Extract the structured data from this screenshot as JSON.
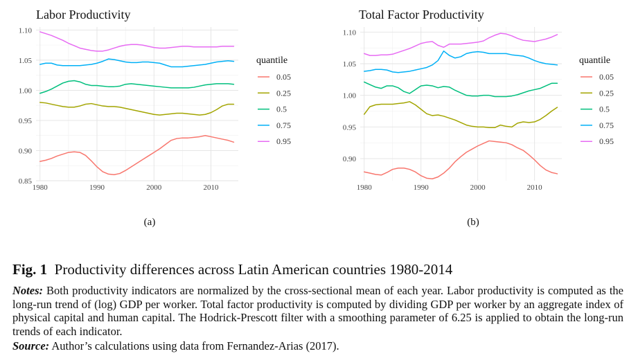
{
  "chart_data": [
    {
      "type": "line",
      "title": "Labor Productivity",
      "panel_label": "(a)",
      "xlim": [
        1979.3,
        2014.8
      ],
      "ylim": [
        0.85,
        1.105
      ],
      "xticks": [
        1980,
        1990,
        2000,
        2010
      ],
      "yticks": [
        0.85,
        0.9,
        0.95,
        1.0,
        1.05,
        1.1
      ],
      "ytick_labels": [
        "0.85",
        "0.90",
        "0.95",
        "1.00",
        "1.05",
        "1.10"
      ],
      "legend": {
        "title": "quantile",
        "position": "right"
      },
      "x": [
        1980,
        1981,
        1982,
        1983,
        1984,
        1985,
        1986,
        1987,
        1988,
        1989,
        1990,
        1991,
        1992,
        1993,
        1994,
        1995,
        1996,
        1997,
        1998,
        1999,
        2000,
        2001,
        2002,
        2003,
        2004,
        2005,
        2006,
        2007,
        2008,
        2009,
        2010,
        2011,
        2012,
        2013,
        2014
      ],
      "series": [
        {
          "name": "0.05",
          "color": "#F8766D",
          "values": [
            0.882,
            0.884,
            0.887,
            0.891,
            0.894,
            0.897,
            0.898,
            0.897,
            0.892,
            0.883,
            0.873,
            0.865,
            0.861,
            0.86,
            0.862,
            0.867,
            0.873,
            0.879,
            0.885,
            0.891,
            0.897,
            0.903,
            0.91,
            0.917,
            0.92,
            0.921,
            0.921,
            0.922,
            0.923,
            0.925,
            0.923,
            0.921,
            0.919,
            0.917,
            0.914
          ]
        },
        {
          "name": "0.25",
          "color": "#A3A500",
          "values": [
            0.98,
            0.979,
            0.977,
            0.975,
            0.973,
            0.972,
            0.972,
            0.974,
            0.977,
            0.978,
            0.976,
            0.974,
            0.973,
            0.973,
            0.972,
            0.97,
            0.968,
            0.966,
            0.964,
            0.962,
            0.96,
            0.959,
            0.96,
            0.961,
            0.962,
            0.962,
            0.961,
            0.96,
            0.959,
            0.96,
            0.963,
            0.968,
            0.974,
            0.977,
            0.977
          ]
        },
        {
          "name": "0.5",
          "color": "#00BF7D",
          "values": [
            0.995,
            0.998,
            1.002,
            1.007,
            1.012,
            1.015,
            1.016,
            1.014,
            1.01,
            1.008,
            1.008,
            1.007,
            1.006,
            1.006,
            1.007,
            1.01,
            1.011,
            1.01,
            1.009,
            1.008,
            1.007,
            1.006,
            1.005,
            1.004,
            1.004,
            1.004,
            1.004,
            1.005,
            1.007,
            1.009,
            1.01,
            1.011,
            1.011,
            1.011,
            1.01
          ]
        },
        {
          "name": "0.75",
          "color": "#00B0F6",
          "values": [
            1.043,
            1.045,
            1.045,
            1.042,
            1.041,
            1.041,
            1.041,
            1.041,
            1.042,
            1.043,
            1.045,
            1.048,
            1.052,
            1.051,
            1.049,
            1.047,
            1.046,
            1.046,
            1.047,
            1.047,
            1.046,
            1.045,
            1.042,
            1.039,
            1.039,
            1.039,
            1.04,
            1.041,
            1.042,
            1.043,
            1.045,
            1.047,
            1.048,
            1.049,
            1.048
          ]
        },
        {
          "name": "0.95",
          "color": "#E76BF3",
          "values": [
            1.097,
            1.094,
            1.091,
            1.087,
            1.083,
            1.078,
            1.074,
            1.07,
            1.068,
            1.066,
            1.065,
            1.065,
            1.067,
            1.07,
            1.073,
            1.075,
            1.076,
            1.076,
            1.075,
            1.073,
            1.071,
            1.07,
            1.07,
            1.071,
            1.072,
            1.073,
            1.073,
            1.072,
            1.072,
            1.072,
            1.072,
            1.072,
            1.073,
            1.073,
            1.073
          ]
        }
      ]
    },
    {
      "type": "line",
      "title": "Total Factor Productivity",
      "panel_label": "(b)",
      "xlim": [
        1979.3,
        2014.8
      ],
      "ylim": [
        0.865,
        1.108
      ],
      "xticks": [
        1980,
        1990,
        2000,
        2010
      ],
      "yticks": [
        0.9,
        0.95,
        1.0,
        1.05,
        1.1
      ],
      "ytick_labels": [
        "0.90",
        "0.95",
        "1.00",
        "1.05",
        "1.10"
      ],
      "legend": {
        "title": "quantile",
        "position": "right"
      },
      "x": [
        1980,
        1981,
        1982,
        1983,
        1984,
        1985,
        1986,
        1987,
        1988,
        1989,
        1990,
        1991,
        1992,
        1993,
        1994,
        1995,
        1996,
        1997,
        1998,
        1999,
        2000,
        2001,
        2002,
        2003,
        2004,
        2005,
        2006,
        2007,
        2008,
        2009,
        2010,
        2011,
        2012,
        2013,
        2014
      ],
      "series": [
        {
          "name": "0.05",
          "color": "#F8766D",
          "values": [
            0.879,
            0.877,
            0.875,
            0.874,
            0.878,
            0.883,
            0.885,
            0.885,
            0.883,
            0.879,
            0.873,
            0.869,
            0.868,
            0.871,
            0.877,
            0.885,
            0.895,
            0.903,
            0.91,
            0.915,
            0.92,
            0.924,
            0.928,
            0.927,
            0.926,
            0.925,
            0.922,
            0.917,
            0.913,
            0.906,
            0.898,
            0.889,
            0.882,
            0.878,
            0.876
          ]
        },
        {
          "name": "0.25",
          "color": "#A3A500",
          "values": [
            0.97,
            0.982,
            0.985,
            0.986,
            0.986,
            0.986,
            0.987,
            0.988,
            0.99,
            0.985,
            0.978,
            0.971,
            0.968,
            0.969,
            0.967,
            0.964,
            0.961,
            0.957,
            0.953,
            0.951,
            0.95,
            0.95,
            0.949,
            0.949,
            0.953,
            0.951,
            0.95,
            0.956,
            0.958,
            0.957,
            0.958,
            0.962,
            0.968,
            0.975,
            0.981
          ]
        },
        {
          "name": "0.5",
          "color": "#00BF7D",
          "values": [
            1.021,
            1.017,
            1.013,
            1.011,
            1.015,
            1.015,
            1.012,
            1.006,
            1.003,
            1.009,
            1.015,
            1.016,
            1.015,
            1.012,
            1.014,
            1.013,
            1.008,
            1.004,
            1.0,
            0.999,
            0.999,
            1.0,
            1.0,
            0.998,
            0.998,
            0.998,
            0.999,
            1.001,
            1.004,
            1.007,
            1.009,
            1.011,
            1.015,
            1.019,
            1.019
          ]
        },
        {
          "name": "0.75",
          "color": "#00B0F6",
          "values": [
            1.038,
            1.039,
            1.041,
            1.041,
            1.04,
            1.037,
            1.036,
            1.037,
            1.038,
            1.04,
            1.042,
            1.044,
            1.048,
            1.055,
            1.07,
            1.063,
            1.059,
            1.061,
            1.066,
            1.068,
            1.069,
            1.068,
            1.066,
            1.066,
            1.066,
            1.066,
            1.064,
            1.063,
            1.062,
            1.059,
            1.055,
            1.052,
            1.05,
            1.049,
            1.048
          ]
        },
        {
          "name": "0.95",
          "color": "#E76BF3",
          "values": [
            1.066,
            1.063,
            1.063,
            1.064,
            1.064,
            1.065,
            1.068,
            1.071,
            1.074,
            1.078,
            1.082,
            1.084,
            1.085,
            1.079,
            1.076,
            1.081,
            1.081,
            1.081,
            1.082,
            1.083,
            1.084,
            1.086,
            1.091,
            1.095,
            1.098,
            1.097,
            1.094,
            1.09,
            1.087,
            1.086,
            1.085,
            1.087,
            1.089,
            1.092,
            1.096
          ]
        }
      ]
    }
  ],
  "caption": {
    "fig_label": "Fig. 1",
    "fig_title": "Productivity differences across Latin American countries 1980-2014",
    "notes_label": "Notes:",
    "notes_text": "Both productivity indicators are normalized by the cross-sectional mean of each year. Labor productivity is computed as the long-run trend of (log) GDP per worker. Total factor productivity is computed by dividing GDP per worker by an aggregate index of physical capital and human capital. The Hodrick-Prescott filter with a smoothing parameter of 6.25 is applied to obtain the long-run trends of each indicator.",
    "source_label": "Source:",
    "source_text": "Author’s calculations using data from Fernandez-Arias (2017)."
  }
}
